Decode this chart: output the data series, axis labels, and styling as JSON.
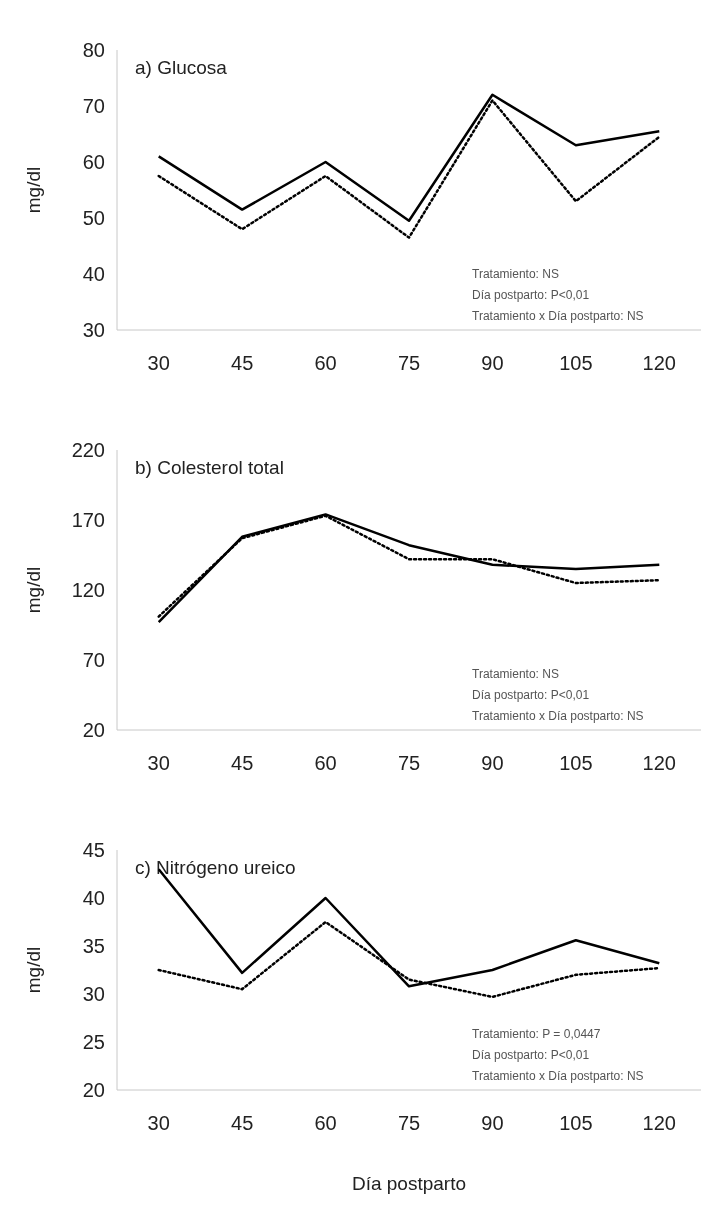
{
  "chart_data": [
    {
      "type": "line",
      "title": "a) Glucosa",
      "ylabel": "mg/dl",
      "categories": [
        "30",
        "45",
        "60",
        "75",
        "90",
        "105",
        "120"
      ],
      "ylim": [
        30,
        80
      ],
      "yticks": [
        30,
        40,
        50,
        60,
        70,
        80
      ],
      "grid": false,
      "marker": "none",
      "annotations": [
        "Tratamiento: NS",
        "Día postparto: P<0,01",
        "Tratamiento x Día postparto: NS"
      ],
      "series": [
        {
          "color": "#000000",
          "line_style": "solid",
          "values": [
            61,
            51.5,
            60,
            49.5,
            72,
            63,
            65.5
          ]
        },
        {
          "color": "#000000",
          "line_style": "dotted",
          "values": [
            57.5,
            48,
            57.5,
            46.5,
            71,
            53,
            64.5
          ]
        }
      ]
    },
    {
      "type": "line",
      "title": "b) Colesterol total",
      "ylabel": "mg/dl",
      "categories": [
        "30",
        "45",
        "60",
        "75",
        "90",
        "105",
        "120"
      ],
      "ylim": [
        20,
        220
      ],
      "yticks": [
        20,
        70,
        120,
        170,
        220
      ],
      "grid": false,
      "marker": "none",
      "annotations": [
        "Tratamiento: NS",
        "Día postparto: P<0,01",
        "Tratamiento x Día postparto: NS"
      ],
      "series": [
        {
          "color": "#000000",
          "line_style": "solid",
          "values": [
            97,
            158,
            174,
            152,
            138,
            135,
            138
          ]
        },
        {
          "color": "#000000",
          "line_style": "dotted",
          "values": [
            101,
            157,
            173,
            142,
            142,
            125,
            127
          ]
        }
      ]
    },
    {
      "type": "line",
      "title": "c) Nitrógeno ureico",
      "ylabel": "mg/dl",
      "xlabel": "Día postparto",
      "categories": [
        "30",
        "45",
        "60",
        "75",
        "90",
        "105",
        "120"
      ],
      "ylim": [
        20,
        45
      ],
      "yticks": [
        20,
        25,
        30,
        35,
        40,
        45
      ],
      "grid": false,
      "marker": "none",
      "annotations": [
        "Tratamiento: P = 0,0447",
        "Día postparto: P<0,01",
        "Tratamiento x Día postparto: NS"
      ],
      "series": [
        {
          "color": "#000000",
          "line_style": "solid",
          "values": [
            43,
            32.2,
            40,
            30.8,
            32.5,
            35.6,
            33.2
          ]
        },
        {
          "color": "#000000",
          "line_style": "dotted",
          "values": [
            32.5,
            30.5,
            37.5,
            31.5,
            29.7,
            32,
            32.7
          ]
        }
      ]
    }
  ]
}
